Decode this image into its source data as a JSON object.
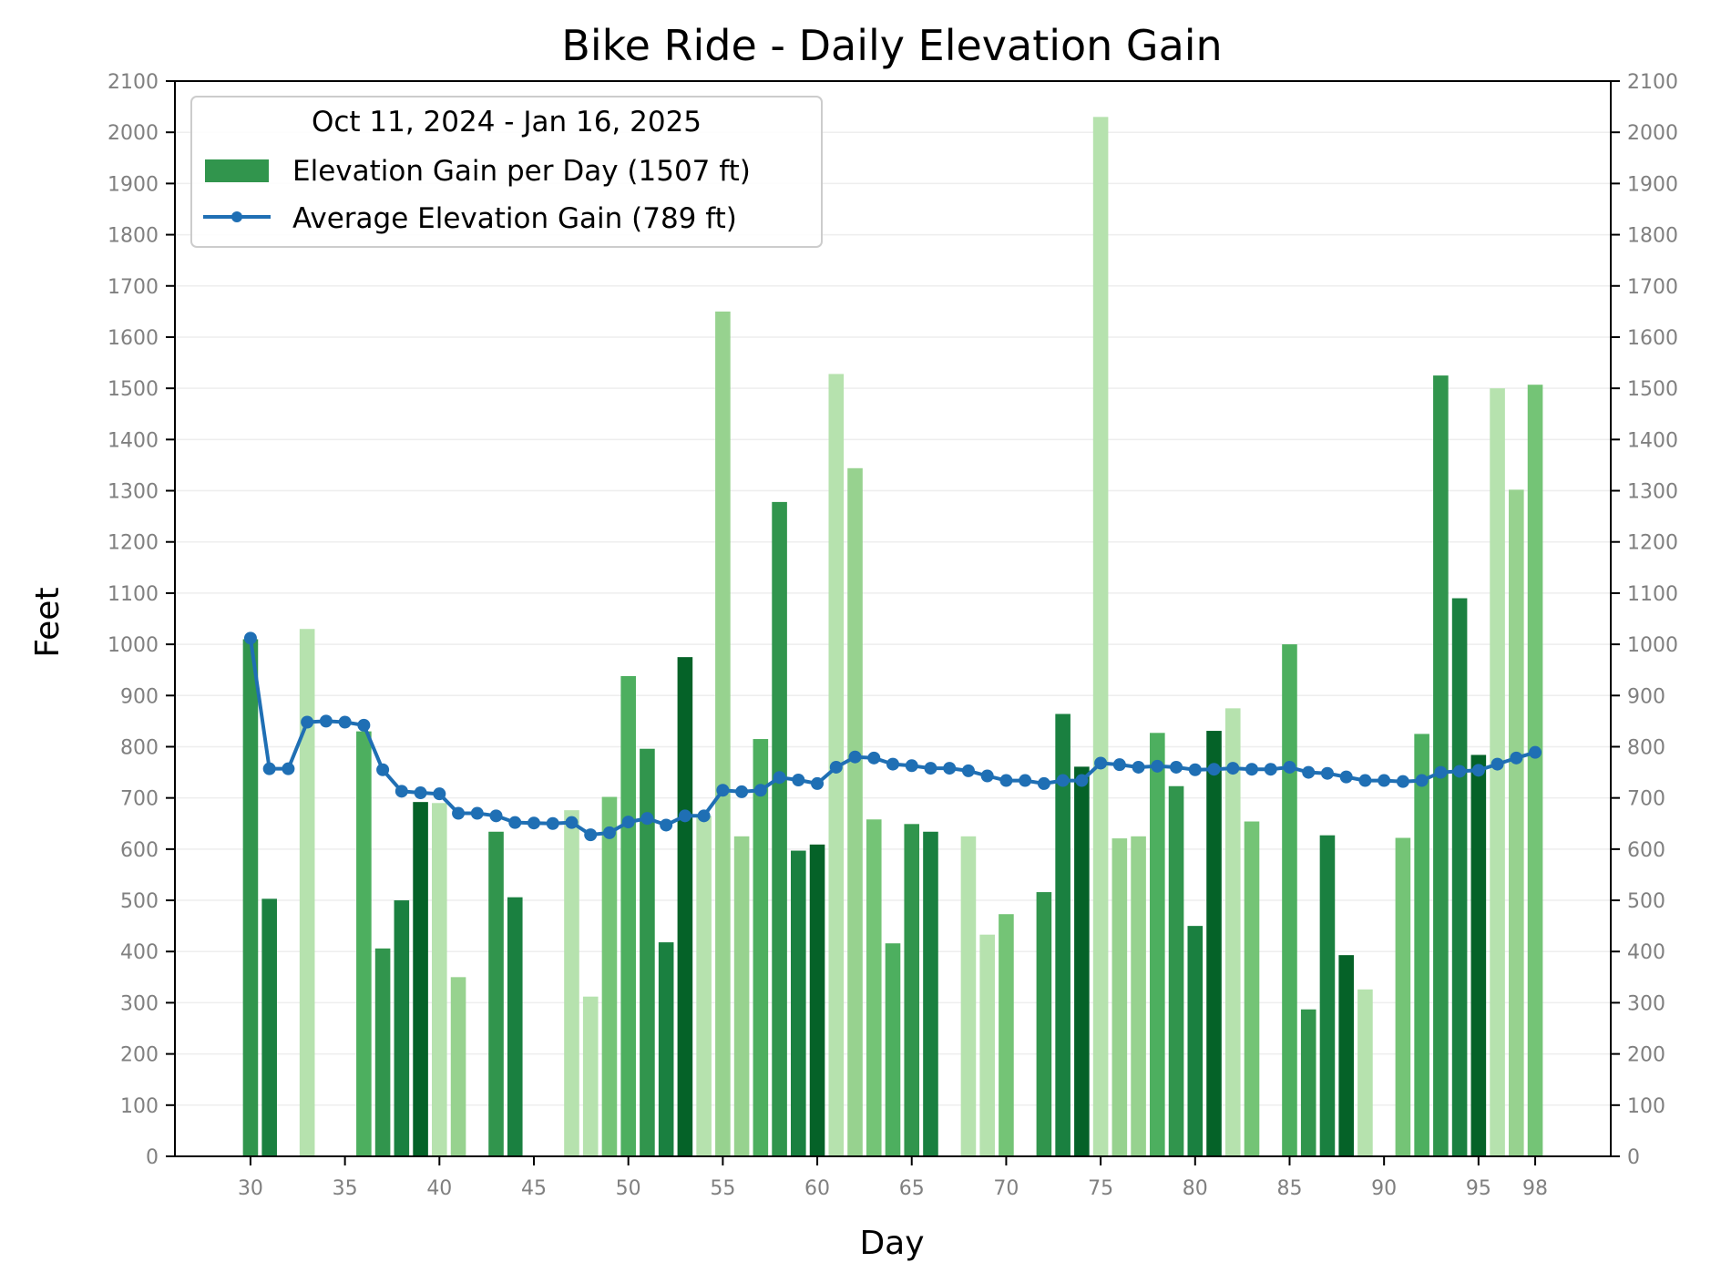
{
  "chart_data": {
    "type": "bar",
    "title": "Bike Ride - Daily Elevation Gain",
    "xlabel": "Day",
    "ylabel": "Feet",
    "xlim": [
      26,
      102
    ],
    "ylim": [
      0,
      2100
    ],
    "x_ticks": [
      30,
      35,
      40,
      45,
      50,
      55,
      60,
      65,
      70,
      75,
      80,
      85,
      90,
      95,
      98
    ],
    "y_ticks": [
      0,
      100,
      200,
      300,
      400,
      500,
      600,
      700,
      800,
      900,
      1000,
      1100,
      1200,
      1300,
      1400,
      1500,
      1600,
      1700,
      1800,
      1900,
      2000,
      2100
    ],
    "right_axis_mirrors_left": true,
    "grid": "horizontal",
    "legend": {
      "placement": "top-left",
      "title": "Oct 11, 2024 - Jan 16, 2025",
      "bar_label": "Elevation Gain per Day (1507 ft)",
      "line_label": "Average Elevation Gain (789 ft)"
    },
    "colors": {
      "bar_legend": "#31954d",
      "line": "#1f6fb4",
      "shades": [
        "#b6e2ae",
        "#97d28f",
        "#74c476",
        "#4daf5f",
        "#31954d",
        "#1a8040",
        "#056228"
      ]
    },
    "bars": [
      {
        "day": 30,
        "value": 1010,
        "shade": 4
      },
      {
        "day": 31,
        "value": 503,
        "shade": 5
      },
      {
        "day": 33,
        "value": 1030,
        "shade": 0
      },
      {
        "day": 36,
        "value": 830,
        "shade": 3
      },
      {
        "day": 37,
        "value": 406,
        "shade": 4
      },
      {
        "day": 38,
        "value": 500,
        "shade": 5
      },
      {
        "day": 39,
        "value": 692,
        "shade": 6
      },
      {
        "day": 40,
        "value": 690,
        "shade": 0
      },
      {
        "day": 41,
        "value": 350,
        "shade": 1
      },
      {
        "day": 43,
        "value": 634,
        "shade": 4
      },
      {
        "day": 44,
        "value": 506,
        "shade": 5
      },
      {
        "day": 47,
        "value": 676,
        "shade": 0
      },
      {
        "day": 48,
        "value": 312,
        "shade": 0
      },
      {
        "day": 49,
        "value": 702,
        "shade": 2
      },
      {
        "day": 50,
        "value": 938,
        "shade": 3
      },
      {
        "day": 51,
        "value": 796,
        "shade": 4
      },
      {
        "day": 52,
        "value": 418,
        "shade": 5
      },
      {
        "day": 53,
        "value": 975,
        "shade": 6
      },
      {
        "day": 54,
        "value": 665,
        "shade": 0
      },
      {
        "day": 55,
        "value": 1650,
        "shade": 1
      },
      {
        "day": 56,
        "value": 625,
        "shade": 1
      },
      {
        "day": 57,
        "value": 815,
        "shade": 3
      },
      {
        "day": 58,
        "value": 1278,
        "shade": 4
      },
      {
        "day": 59,
        "value": 597,
        "shade": 5
      },
      {
        "day": 60,
        "value": 609,
        "shade": 6
      },
      {
        "day": 61,
        "value": 1528,
        "shade": 0
      },
      {
        "day": 62,
        "value": 1344,
        "shade": 1
      },
      {
        "day": 63,
        "value": 658,
        "shade": 2
      },
      {
        "day": 64,
        "value": 416,
        "shade": 3
      },
      {
        "day": 65,
        "value": 649,
        "shade": 4
      },
      {
        "day": 66,
        "value": 634,
        "shade": 5
      },
      {
        "day": 68,
        "value": 625,
        "shade": 0
      },
      {
        "day": 69,
        "value": 433,
        "shade": 0
      },
      {
        "day": 70,
        "value": 473,
        "shade": 2
      },
      {
        "day": 72,
        "value": 516,
        "shade": 4
      },
      {
        "day": 73,
        "value": 864,
        "shade": 5
      },
      {
        "day": 74,
        "value": 761,
        "shade": 6
      },
      {
        "day": 75,
        "value": 2030,
        "shade": 0
      },
      {
        "day": 76,
        "value": 621,
        "shade": 1
      },
      {
        "day": 77,
        "value": 625,
        "shade": 1
      },
      {
        "day": 78,
        "value": 827,
        "shade": 3
      },
      {
        "day": 79,
        "value": 723,
        "shade": 4
      },
      {
        "day": 80,
        "value": 450,
        "shade": 5
      },
      {
        "day": 81,
        "value": 831,
        "shade": 6
      },
      {
        "day": 82,
        "value": 875,
        "shade": 0
      },
      {
        "day": 83,
        "value": 654,
        "shade": 2
      },
      {
        "day": 85,
        "value": 1000,
        "shade": 3
      },
      {
        "day": 86,
        "value": 287,
        "shade": 4
      },
      {
        "day": 87,
        "value": 627,
        "shade": 5
      },
      {
        "day": 88,
        "value": 393,
        "shade": 6
      },
      {
        "day": 89,
        "value": 326,
        "shade": 0
      },
      {
        "day": 91,
        "value": 622,
        "shade": 2
      },
      {
        "day": 92,
        "value": 825,
        "shade": 3
      },
      {
        "day": 93,
        "value": 1525,
        "shade": 4
      },
      {
        "day": 94,
        "value": 1090,
        "shade": 5
      },
      {
        "day": 95,
        "value": 784,
        "shade": 6
      },
      {
        "day": 96,
        "value": 1500,
        "shade": 0
      },
      {
        "day": 97,
        "value": 1302,
        "shade": 1
      },
      {
        "day": 98,
        "value": 1507,
        "shade": 2
      }
    ],
    "average": {
      "x": [
        30,
        31,
        32,
        33,
        34,
        35,
        36,
        37,
        38,
        39,
        40,
        41,
        42,
        43,
        44,
        45,
        46,
        47,
        48,
        49,
        50,
        51,
        52,
        53,
        54,
        55,
        56,
        57,
        58,
        59,
        60,
        61,
        62,
        63,
        64,
        65,
        66,
        67,
        68,
        69,
        70,
        71,
        72,
        73,
        74,
        75,
        76,
        77,
        78,
        79,
        80,
        81,
        82,
        83,
        84,
        85,
        86,
        87,
        88,
        89,
        90,
        91,
        92,
        93,
        94,
        95,
        96,
        97,
        98
      ],
      "y": [
        1012,
        757,
        757,
        848,
        850,
        848,
        842,
        755,
        713,
        710,
        708,
        670,
        670,
        665,
        652,
        651,
        650,
        652,
        628,
        632,
        653,
        660,
        647,
        665,
        665,
        715,
        712,
        715,
        740,
        735,
        728,
        760,
        780,
        778,
        766,
        763,
        758,
        758,
        753,
        743,
        734,
        734,
        728,
        734,
        734,
        768,
        765,
        760,
        762,
        760,
        755,
        756,
        758,
        756,
        756,
        760,
        750,
        748,
        741,
        734,
        734,
        732,
        734,
        750,
        752,
        754,
        766,
        778,
        789
      ]
    }
  }
}
